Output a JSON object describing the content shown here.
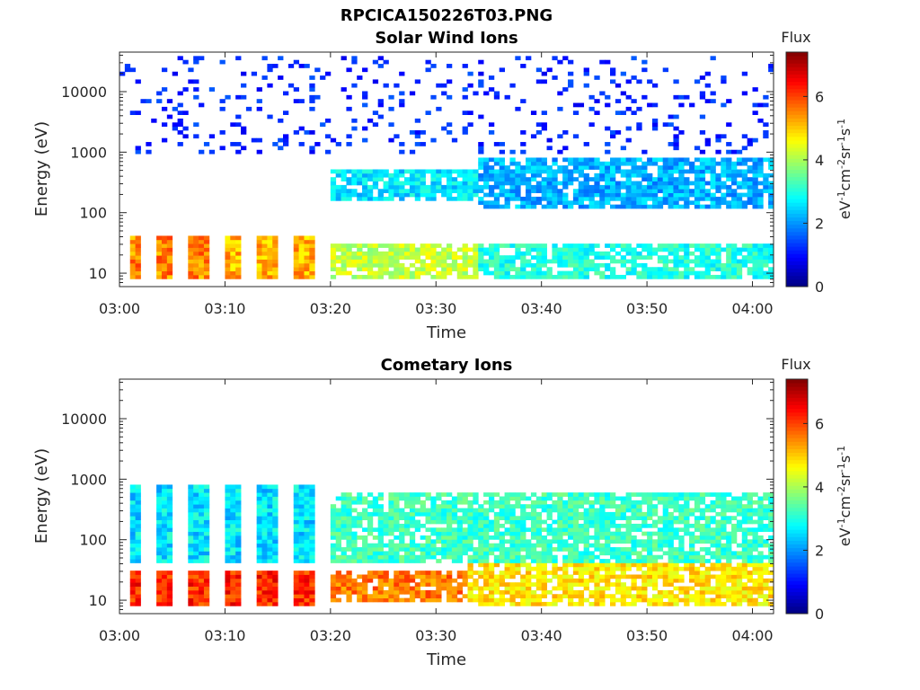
{
  "figure": {
    "title": "RPCICA150226T03.PNG"
  },
  "chart_data": [
    {
      "type": "heatmap",
      "title": "Solar Wind Ions",
      "xlabel": "Time",
      "ylabel": "Energy (eV)",
      "x_tick_labels": [
        "03:00",
        "03:10",
        "03:20",
        "03:30",
        "03:40",
        "03:50",
        "04:00"
      ],
      "y_tick_labels": [
        "10",
        "100",
        "1000",
        "10000"
      ],
      "y_scale": "log",
      "ylim": [
        6,
        45000
      ],
      "xlim_minutes": [
        0,
        62
      ],
      "colorbar": {
        "label": "Flux",
        "unit": "eV-1cm-2sr-1s-1",
        "ticks": [
          "0",
          "2",
          "4",
          "6"
        ],
        "range": [
          0,
          7.4
        ],
        "colormap": "jet"
      },
      "features": [
        {
          "t": [
            1,
            10
          ],
          "e": [
            8,
            40
          ],
          "level": 5.5,
          "pattern": "bursts"
        },
        {
          "t": [
            10,
            20
          ],
          "e": [
            8,
            40
          ],
          "level": 5.2,
          "pattern": "bursts"
        },
        {
          "t": [
            20,
            34
          ],
          "e": [
            8,
            30
          ],
          "level": 4.2
        },
        {
          "t": [
            20,
            34
          ],
          "e": [
            150,
            500
          ],
          "level": 2.6
        },
        {
          "t": [
            34,
            62
          ],
          "e": [
            8,
            30
          ],
          "level": 3.0
        },
        {
          "t": [
            34,
            62
          ],
          "e": [
            120,
            800
          ],
          "level": 2.2
        },
        {
          "t": [
            0,
            62
          ],
          "e": [
            1000,
            40000
          ],
          "level": 1.2,
          "pattern": "sparse"
        }
      ]
    },
    {
      "type": "heatmap",
      "title": "Cometary Ions",
      "xlabel": "Time",
      "ylabel": "Energy (eV)",
      "x_tick_labels": [
        "03:00",
        "03:10",
        "03:20",
        "03:30",
        "03:40",
        "03:50",
        "04:00"
      ],
      "y_tick_labels": [
        "10",
        "100",
        "1000",
        "10000"
      ],
      "y_scale": "log",
      "ylim": [
        6,
        45000
      ],
      "xlim_minutes": [
        0,
        62
      ],
      "colorbar": {
        "label": "Flux",
        "unit": "eV-1cm-2sr-1s-1",
        "ticks": [
          "0",
          "2",
          "4",
          "6"
        ],
        "range": [
          0,
          7.4
        ],
        "colormap": "jet"
      },
      "features": [
        {
          "t": [
            1,
            20
          ],
          "e": [
            8,
            30
          ],
          "level": 6.2,
          "pattern": "bursts"
        },
        {
          "t": [
            20,
            33
          ],
          "e": [
            10,
            30
          ],
          "level": 5.6
        },
        {
          "t": [
            33,
            62
          ],
          "e": [
            8,
            40
          ],
          "level": 4.8
        },
        {
          "t": [
            20,
            62
          ],
          "e": [
            40,
            600
          ],
          "level": 3.2
        },
        {
          "t": [
            1,
            20
          ],
          "e": [
            40,
            800
          ],
          "level": 2.6,
          "pattern": "bursts"
        }
      ]
    }
  ]
}
